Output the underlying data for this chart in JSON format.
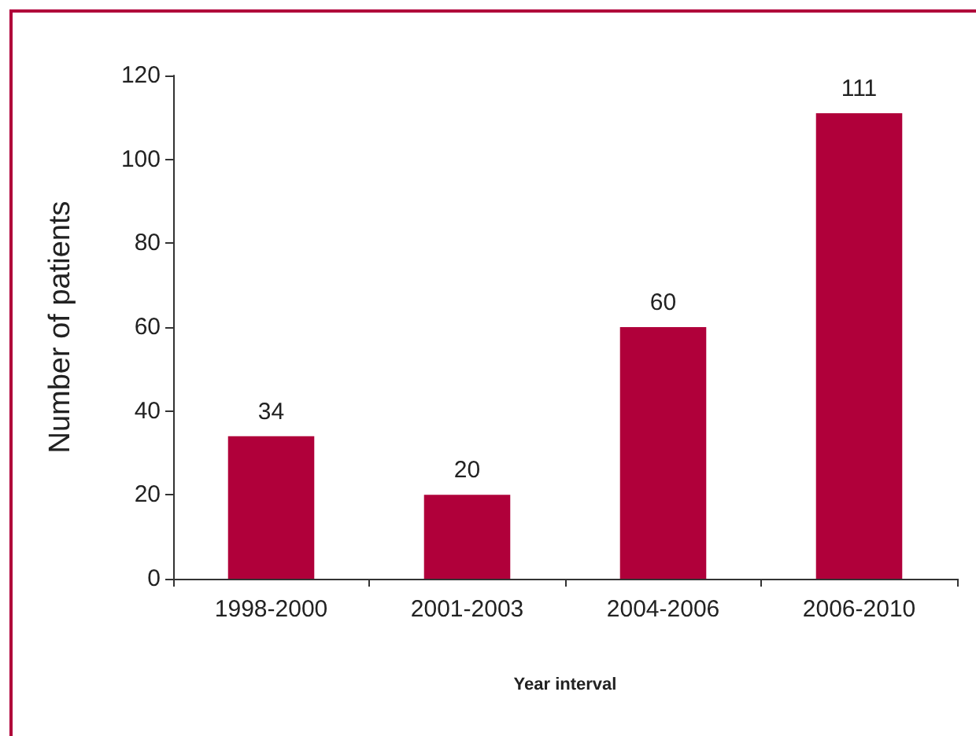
{
  "chart_data": {
    "type": "bar",
    "xlabel": "Year interval",
    "ylabel": "Number of patients",
    "categories": [
      "1998-2000",
      "2001-2003",
      "2004-2006",
      "2006-2010"
    ],
    "values": [
      34,
      20,
      60,
      111
    ],
    "color": "#b0003a",
    "ylim": [
      0,
      120
    ],
    "yticks": [
      0,
      20,
      40,
      60,
      80,
      100,
      120
    ],
    "grid": false,
    "data_labels": true
  }
}
